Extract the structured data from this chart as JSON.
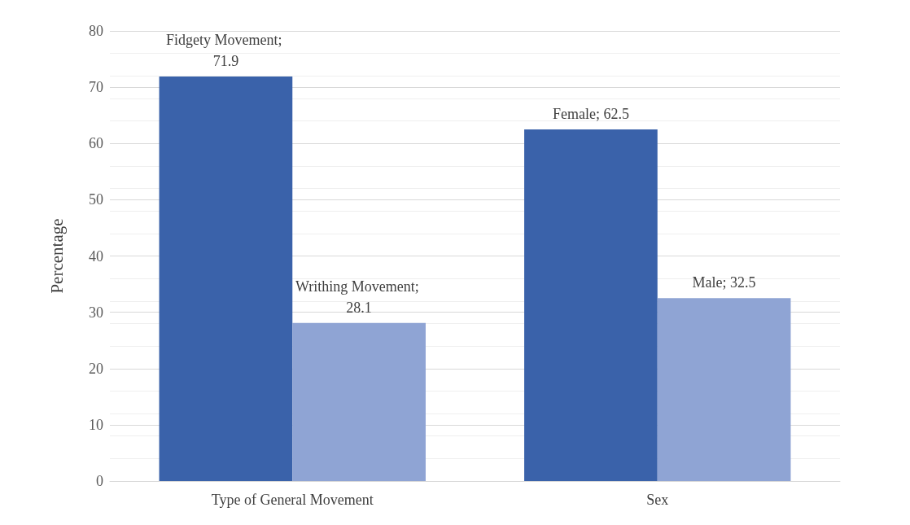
{
  "chart_data": {
    "type": "bar",
    "ylabel": "Percentage",
    "categories": [
      "Type of General Movement",
      "Sex"
    ],
    "series": [
      {
        "color": "#3a62aa",
        "values": [
          71.9,
          62.5
        ],
        "value_labels": [
          "Fidgety Movement; 71.9",
          "Female; 62.5"
        ]
      },
      {
        "color": "#8fa4d4",
        "values": [
          28.1,
          32.5
        ],
        "value_labels": [
          "Writhing Movement; 28.1",
          "Male; 32.5"
        ]
      }
    ],
    "ylim": [
      0,
      80
    ],
    "yticks": [
      0,
      10,
      20,
      30,
      40,
      50,
      60,
      70,
      80
    ],
    "grid": "y"
  }
}
